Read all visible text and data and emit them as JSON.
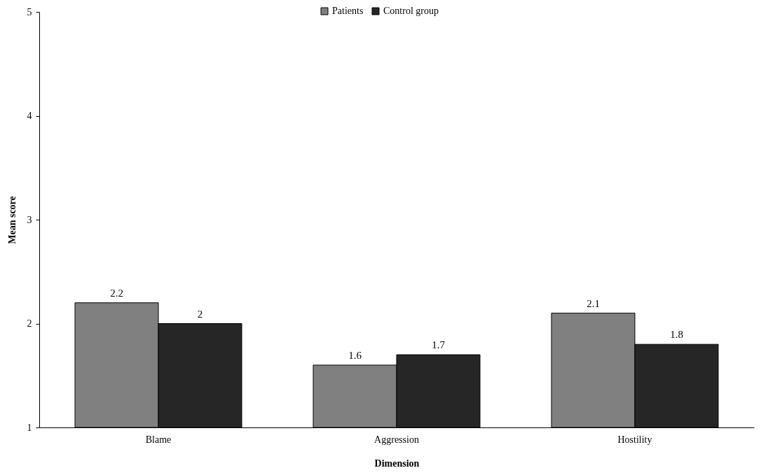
{
  "chart_data": {
    "type": "bar",
    "xlabel": "Dimension",
    "ylabel": "Mean score",
    "categories": [
      "Blame",
      "Aggression",
      "Hostility"
    ],
    "series": [
      {
        "name": "Patients",
        "color": "#808080",
        "values": [
          2.2,
          1.6,
          2.1
        ]
      },
      {
        "name": "Control group",
        "color": "#262626",
        "values": [
          2,
          1.7,
          1.8
        ]
      }
    ],
    "ylim": [
      1,
      5
    ],
    "yticks": [
      1,
      2,
      3,
      4,
      5
    ],
    "grid": false,
    "legend": "top",
    "data_labels": true
  }
}
